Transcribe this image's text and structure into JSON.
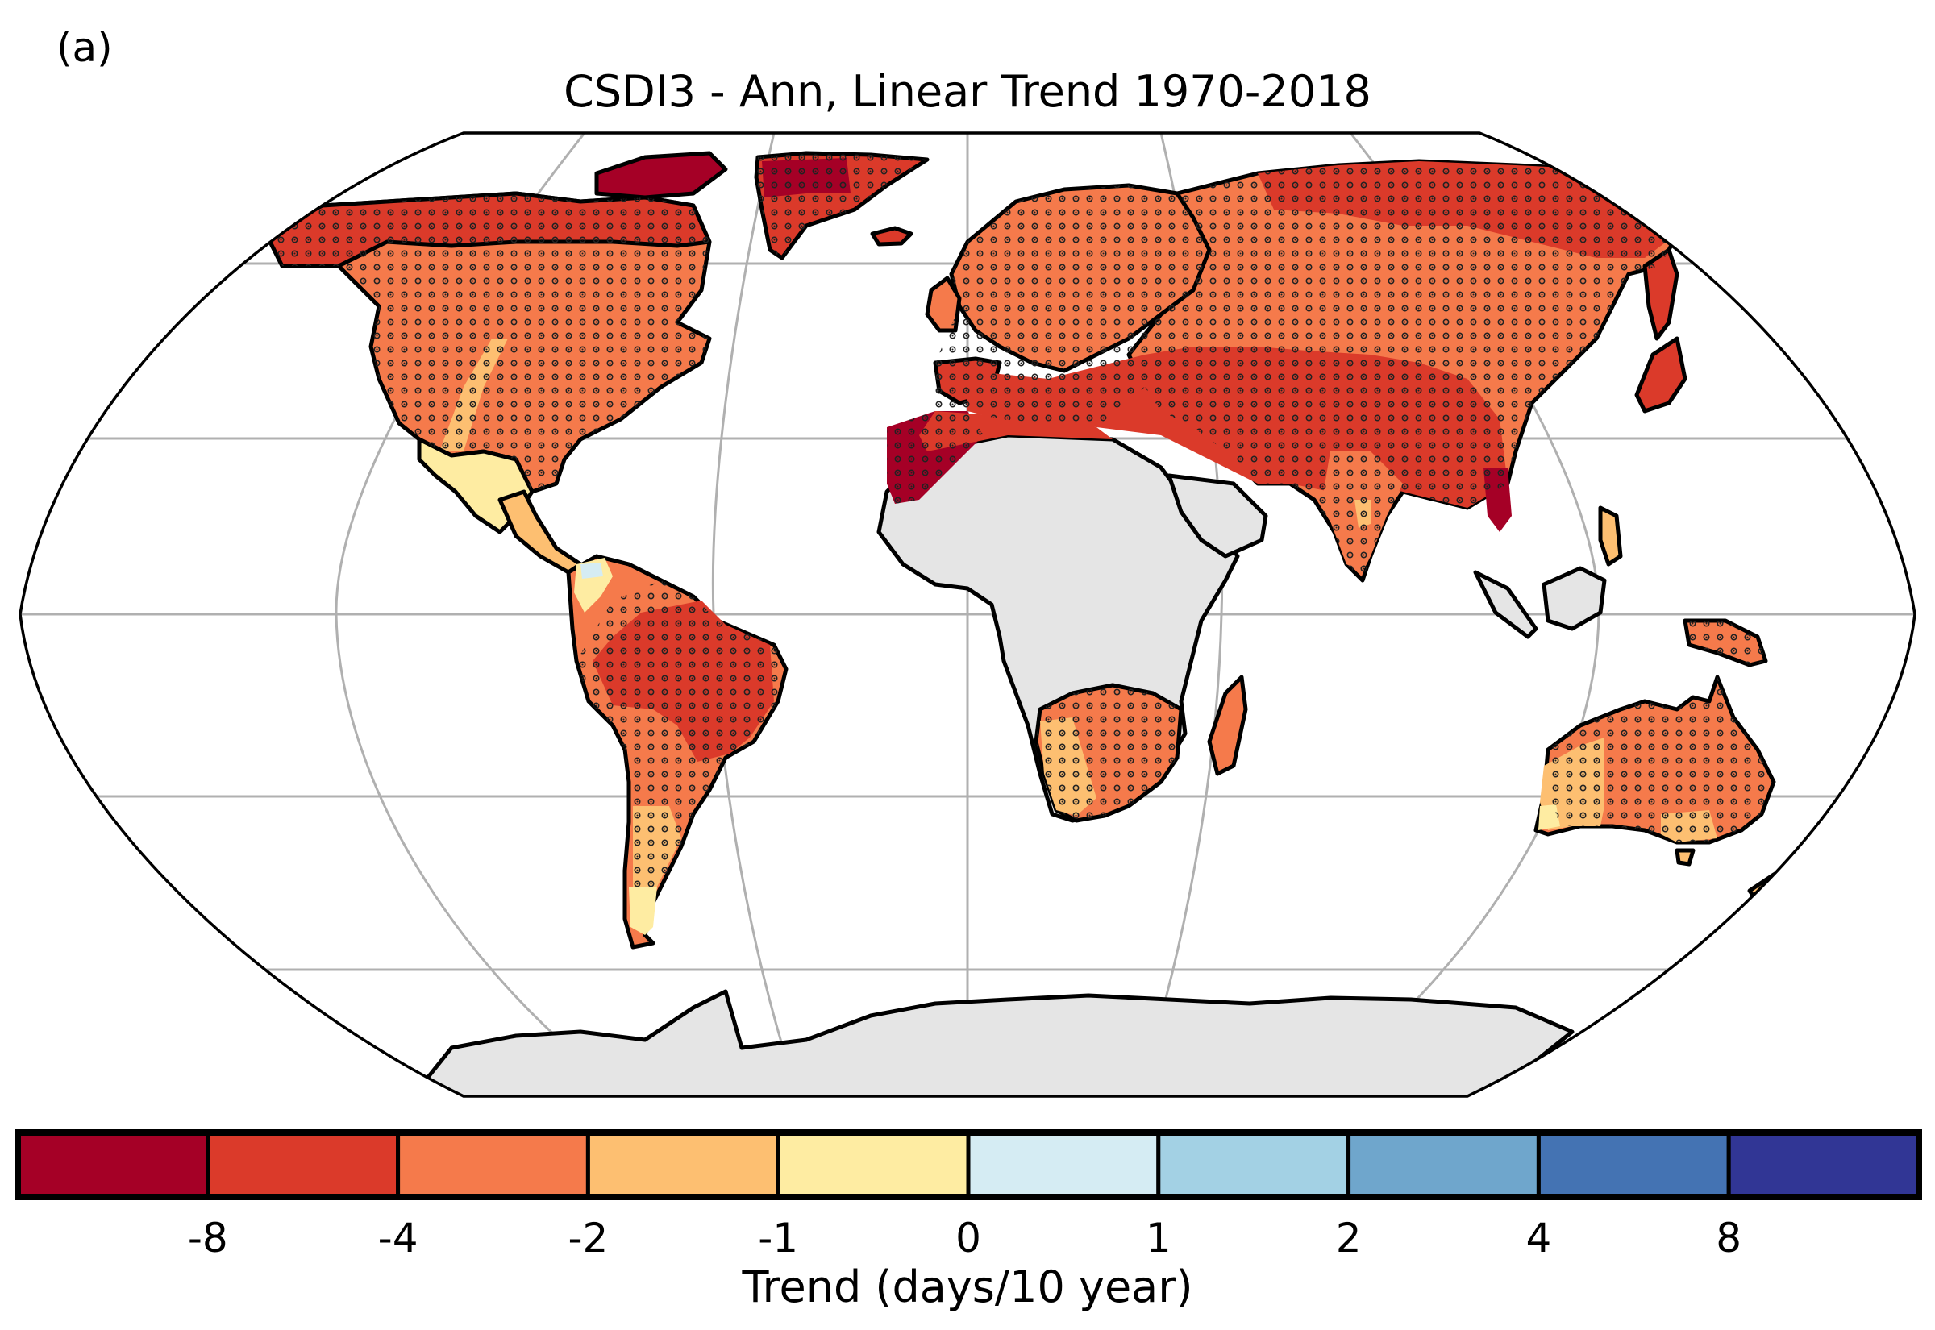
{
  "figure": {
    "panel_label": "(a)",
    "title": "CSDI3 - Ann, Linear Trend 1970-2018",
    "projection": "Robinson",
    "stippling_meaning": "significant trend",
    "missing_data_color": "#e5e5e5",
    "land_outline_color": "#000000",
    "gridline_color": "#b0b0b0"
  },
  "colorbar": {
    "label": "Trend (days/10 year)",
    "bins": [
      {
        "range": "< -8",
        "color": "#a50026"
      },
      {
        "range": "-8 to -4",
        "color": "#db3a2a"
      },
      {
        "range": "-4 to -2",
        "color": "#f57a4b"
      },
      {
        "range": "-2 to -1",
        "color": "#fdbf71"
      },
      {
        "range": "-1 to 0",
        "color": "#feeca2"
      },
      {
        "range": "0 to 1",
        "color": "#d5ecf3"
      },
      {
        "range": "1 to 2",
        "color": "#a3d1e4"
      },
      {
        "range": "2 to 4",
        "color": "#6fa6cc"
      },
      {
        "range": "4 to 8",
        "color": "#4473b3"
      },
      {
        "range": "> 8",
        "color": "#313695"
      }
    ],
    "tick_labels": [
      "-8",
      "-4",
      "-2",
      "-1",
      "0",
      "1",
      "2",
      "4",
      "8"
    ]
  },
  "regions": [
    {
      "name": "Alaska & N Canada",
      "trend_bin": "-8 to -4"
    },
    {
      "name": "Canadian Arctic Archipelago",
      "trend_bin": "< -8"
    },
    {
      "name": "Greenland",
      "trend_bin": "< -8"
    },
    {
      "name": "Contiguous USA & S Canada",
      "trend_bin": "-4 to -2"
    },
    {
      "name": "US Great Plains strip",
      "trend_bin": "-2 to -1"
    },
    {
      "name": "Mexico",
      "trend_bin": "-1 to 0"
    },
    {
      "name": "Central America",
      "trend_bin": "-2 to -1"
    },
    {
      "name": "N South America (Colombia/Venezuela)",
      "trend_bin": "-1 to 0"
    },
    {
      "name": "Amazon & E Brazil",
      "trend_bin": "-8 to -4"
    },
    {
      "name": "S South America",
      "trend_bin": "-4 to -2"
    },
    {
      "name": "Patagonia",
      "trend_bin": "-1 to 0"
    },
    {
      "name": "Europe & W Russia",
      "trend_bin": "-4 to -2"
    },
    {
      "name": "Iberia",
      "trend_bin": "-8 to -4"
    },
    {
      "name": "NW Africa (Morocco)",
      "trend_bin": "< -8"
    },
    {
      "name": "North Africa",
      "trend_bin": "-8 to -4"
    },
    {
      "name": "Siberia & NE Russia",
      "trend_bin": "-8 to -4"
    },
    {
      "name": "Middle East & Central Asia",
      "trend_bin": "-8 to -4"
    },
    {
      "name": "India",
      "trend_bin": "-4 to -2"
    },
    {
      "name": "Indochina",
      "trend_bin": "< -8"
    },
    {
      "name": "East China, Korea, Japan",
      "trend_bin": "-8 to -4"
    },
    {
      "name": "Southern Africa",
      "trend_bin": "-4 to -2"
    },
    {
      "name": "SW Africa",
      "trend_bin": "-2 to -1"
    },
    {
      "name": "Madagascar",
      "trend_bin": "-4 to -2"
    },
    {
      "name": "Australia (central/east)",
      "trend_bin": "-4 to -2"
    },
    {
      "name": "Australia (west/southeast)",
      "trend_bin": "-2 to -1"
    },
    {
      "name": "SW Australia",
      "trend_bin": "-1 to 0"
    },
    {
      "name": "New Guinea",
      "trend_bin": "-4 to -2"
    },
    {
      "name": "New Zealand",
      "trend_bin": "-2 to -1"
    },
    {
      "name": "Central Africa, Arabia, Indonesia, Antarctica",
      "trend_bin": "missing"
    }
  ]
}
